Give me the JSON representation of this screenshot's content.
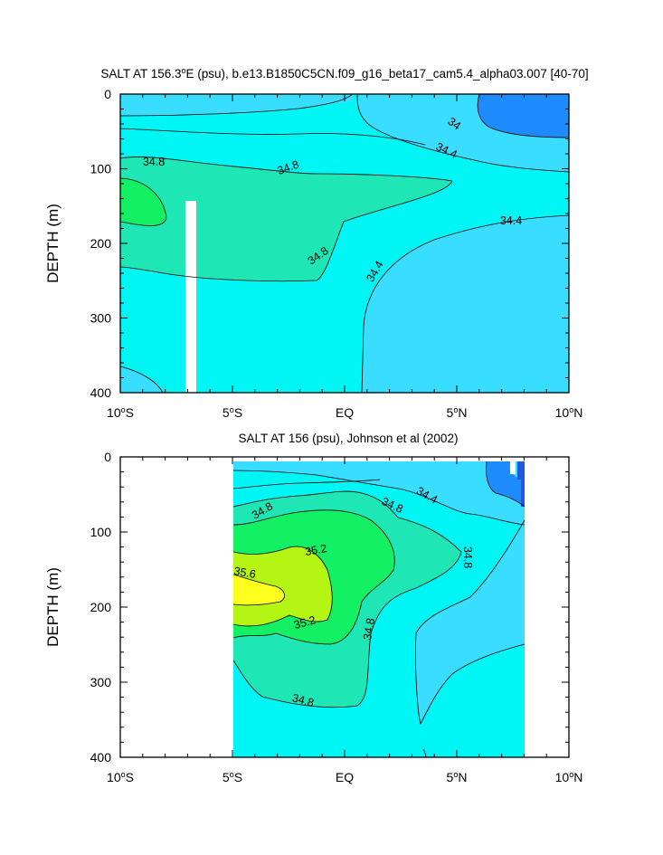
{
  "chart_data": [
    {
      "type": "contour",
      "title": "SALT AT 156.3°E (psu), b.e13.B1850C5CN.f09_g16_beta17_cam5.4_alpha03.007 [40-70]",
      "title_parts": {
        "pre": "SALT AT 156.3",
        "sup": "o",
        "post": "E (psu), b.e13.B1850C5CN.f09_g16_beta17_cam5.4_alpha03.007 [40-70]"
      },
      "xlabel": "",
      "ylabel": "DEPTH (m)",
      "xlim": [
        -10,
        10
      ],
      "ylim": [
        400,
        0
      ],
      "x_ticks": [
        {
          "value": -10,
          "num": "10",
          "sup": "o",
          "hemi": "S"
        },
        {
          "value": -5,
          "num": "5",
          "sup": "o",
          "hemi": "S"
        },
        {
          "value": 0,
          "num": "EQ",
          "sup": "",
          "hemi": ""
        },
        {
          "value": 5,
          "num": "5",
          "sup": "o",
          "hemi": "N"
        },
        {
          "value": 10,
          "num": "10",
          "sup": "o",
          "hemi": "N"
        }
      ],
      "y_ticks": [
        "0",
        "100",
        "200",
        "300",
        "400"
      ],
      "contour_labels": [
        "34.8",
        "34.8",
        "34.8",
        "34",
        "34.4",
        "34.4",
        "34.4"
      ],
      "colors": {
        "lt34": "#1e8cff",
        "34_34_4": "#38ddff",
        "34_4_34_8": "#00f5f5",
        "34_8_35_2": "#1ee6b4",
        "35_2_35_6": "#14f064"
      },
      "grid": false,
      "legend": "none"
    },
    {
      "type": "contour",
      "title": "SALT AT 156 (psu), Johnson et al (2002)",
      "xlabel": "",
      "ylabel": "DEPTH (m)",
      "xlim": [
        -10,
        10
      ],
      "ylim": [
        400,
        0
      ],
      "data_extent_x": [
        -5,
        8
      ],
      "data_extent_y": [
        8,
        400
      ],
      "x_ticks": [
        {
          "value": -10,
          "num": "10",
          "sup": "o",
          "hemi": "S"
        },
        {
          "value": -5,
          "num": "5",
          "sup": "o",
          "hemi": "S"
        },
        {
          "value": 0,
          "num": "EQ",
          "sup": "",
          "hemi": ""
        },
        {
          "value": 5,
          "num": "5",
          "sup": "o",
          "hemi": "N"
        },
        {
          "value": 10,
          "num": "10",
          "sup": "o",
          "hemi": "N"
        }
      ],
      "y_ticks": [
        "0",
        "100",
        "200",
        "300",
        "400"
      ],
      "contour_labels": [
        "34.8",
        "34.8",
        "34.4",
        "35.2",
        "35.6",
        "35.2",
        "34.8",
        "34.8",
        "34.8"
      ],
      "colors": {
        "lt34": "#1e5adc",
        "34_34_4": "#38ddff",
        "34_4_34_8": "#00f5f5",
        "34_8_35_2": "#1ee6b4",
        "35_2_35_6": "#14f064",
        "35_6_36": "#b4f514",
        "gt36": "#ffff1e"
      },
      "grid": false,
      "legend": "none"
    }
  ]
}
